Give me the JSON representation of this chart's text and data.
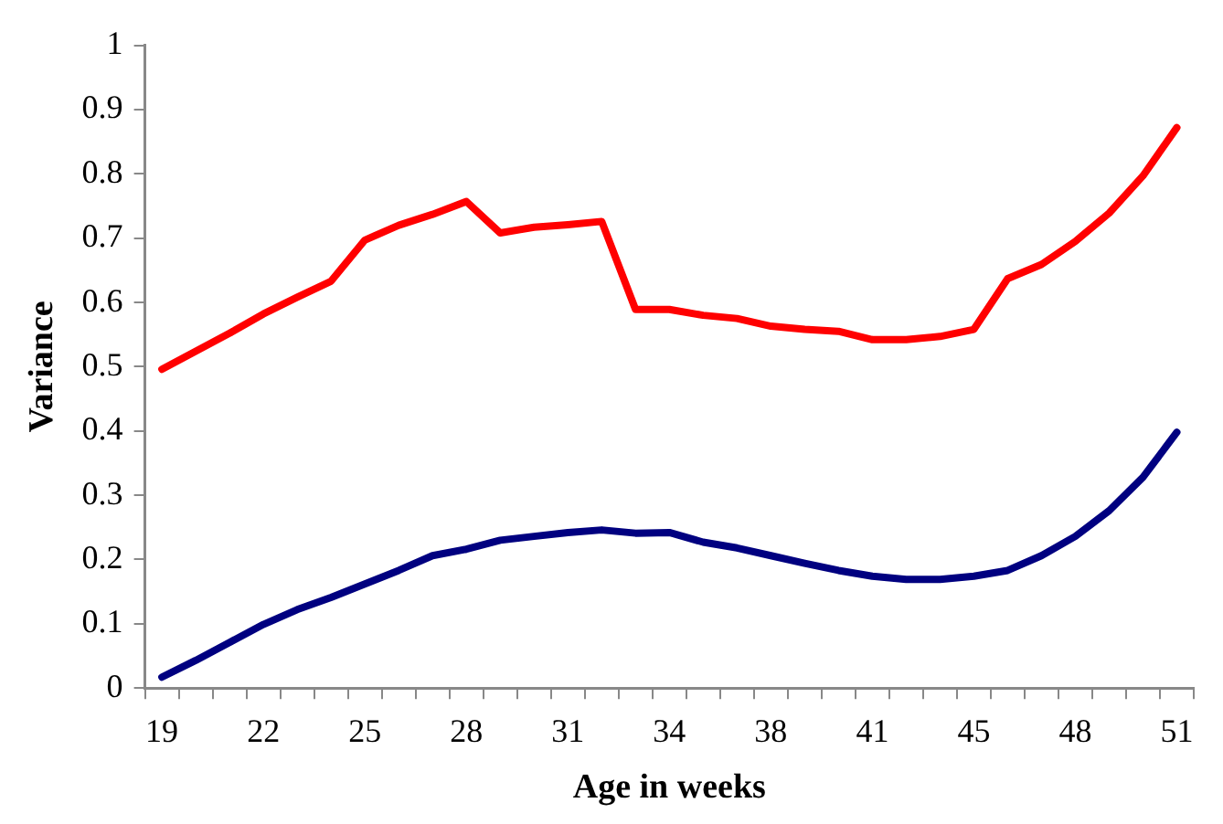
{
  "chart_data": {
    "type": "line",
    "xlabel": "Age in weeks",
    "ylabel": "Variance",
    "categories": [
      "19",
      null,
      null,
      "22",
      null,
      null,
      "25",
      null,
      null,
      "28",
      null,
      null,
      "31",
      null,
      null,
      "34",
      null,
      null,
      "38",
      null,
      null,
      "41",
      null,
      null,
      "45",
      null,
      null,
      "48",
      null,
      null,
      "51"
    ],
    "series": [
      {
        "color": "#ff0000",
        "values": [
          0.496,
          0.524,
          0.552,
          0.582,
          0.608,
          0.633,
          0.697,
          0.72,
          0.737,
          0.757,
          0.708,
          0.717,
          0.721,
          0.726,
          0.589,
          0.589,
          0.58,
          0.575,
          0.563,
          0.558,
          0.555,
          0.542,
          0.542,
          0.547,
          0.558,
          0.637,
          0.659,
          0.695,
          0.739,
          0.797,
          0.872
        ]
      },
      {
        "color": "#000080",
        "values": [
          0.017,
          0.043,
          0.071,
          0.099,
          0.122,
          0.141,
          0.162,
          0.183,
          0.206,
          0.216,
          0.23,
          0.236,
          0.242,
          0.246,
          0.241,
          0.242,
          0.227,
          0.218,
          0.206,
          0.194,
          0.183,
          0.174,
          0.169,
          0.169,
          0.174,
          0.183,
          0.206,
          0.236,
          0.276,
          0.328,
          0.398
        ]
      }
    ],
    "ylim": [
      0,
      1
    ],
    "yticks": [
      0,
      0.1,
      0.2,
      0.3,
      0.4,
      0.5,
      0.6,
      0.7,
      0.8,
      0.9,
      1
    ],
    "grid": false,
    "legend": false,
    "marker": "none",
    "line_style": "solid"
  }
}
